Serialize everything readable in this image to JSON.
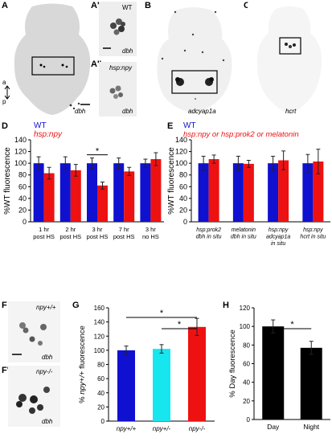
{
  "panels": {
    "A": {
      "letter": "A",
      "gene": "dbh",
      "axis_a": "a",
      "axis_p": "p"
    },
    "A1": {
      "letter": "A'",
      "label": "WT",
      "gene": "dbh"
    },
    "A2": {
      "letter": "A''",
      "label": "hsp:npy",
      "gene": "dbh"
    },
    "B": {
      "letter": "B",
      "gene": "adcyap1a"
    },
    "C": {
      "letter": "C",
      "gene": "hcrt"
    },
    "F": {
      "letter": "F",
      "label": "npy+/+",
      "gene": "dbh"
    },
    "F1": {
      "letter": "F'",
      "label": "npy-/-",
      "gene": "dbh"
    }
  },
  "colors": {
    "wt": "#1010d0",
    "transgenic": "#ee1111",
    "het": "#18e6ee",
    "black": "#000000"
  },
  "chart_data": [
    {
      "panel": "D",
      "type": "bar",
      "legend": [
        "WT",
        "hsp:npy"
      ],
      "ylabel": "%WT fluorescence",
      "ylim": [
        0,
        140
      ],
      "yticks": [
        0,
        20,
        40,
        60,
        80,
        100,
        120,
        140
      ],
      "categories": [
        "1 hr post HS",
        "2 hr post HS",
        "3 hr post HS",
        "7 hr post HS",
        "3 hr no HS"
      ],
      "category_lines": [
        [
          "1 hr",
          "post HS"
        ],
        [
          "2 hr",
          "post HS"
        ],
        [
          "3 hr",
          "post HS"
        ],
        [
          "7 hr",
          "post HS"
        ],
        [
          "3 hr",
          "no HS"
        ]
      ],
      "series": [
        {
          "name": "WT",
          "values": [
            100,
            100,
            100,
            100,
            100
          ],
          "errors": [
            11,
            11,
            9,
            9,
            7
          ]
        },
        {
          "name": "hsp:npy",
          "values": [
            83,
            88,
            62,
            86,
            107
          ],
          "errors": [
            10,
            10,
            6,
            7,
            11
          ]
        }
      ],
      "annotations": [
        {
          "text": "*",
          "category": 2
        }
      ]
    },
    {
      "panel": "E",
      "type": "bar",
      "legend": [
        "WT",
        "hsp:npy or hsp:prok2 or melatonin"
      ],
      "ylabel": "%WT fluorescence",
      "ylim": [
        0,
        140
      ],
      "yticks": [
        0,
        20,
        40,
        60,
        80,
        100,
        120,
        140
      ],
      "categories": [
        "hsp:prok2 dbh in situ",
        "melatonin dbh in situ",
        "hsp:npy adcyap1a in situ",
        "hsp:npy hcrt in situ"
      ],
      "category_lines": [
        [
          "hsp:prok2",
          "dbh in situ"
        ],
        [
          "melatonin",
          "dbh in situ"
        ],
        [
          "hsp:npy",
          "adcyap1a",
          "in situ"
        ],
        [
          "hsp:npy",
          "hcrt in situ"
        ]
      ],
      "series": [
        {
          "name": "WT",
          "values": [
            100,
            100,
            100,
            100
          ],
          "errors": [
            12,
            12,
            12,
            15
          ]
        },
        {
          "name": "hsp:npy or hsp:prok2 or melatonin",
          "values": [
            107,
            99,
            105,
            103
          ],
          "errors": [
            7,
            6,
            16,
            21
          ]
        }
      ]
    },
    {
      "panel": "G",
      "type": "bar",
      "ylabel": "% npy+/+ fluorescence",
      "ylim": [
        0,
        160
      ],
      "yticks": [
        0,
        20,
        40,
        60,
        80,
        100,
        120,
        140,
        160
      ],
      "categories": [
        "npy+/+",
        "npy+/-",
        "npy-/-"
      ],
      "series": [
        {
          "values": [
            100,
            102,
            133
          ],
          "errors": [
            6,
            6,
            12
          ]
        }
      ],
      "annotations": [
        {
          "text": "*",
          "from": 0,
          "to": 2
        },
        {
          "text": "*",
          "from": 1,
          "to": 2
        }
      ]
    },
    {
      "panel": "H",
      "type": "bar",
      "ylabel": "% Day fluorescence",
      "ylim": [
        0,
        120
      ],
      "yticks": [
        0,
        20,
        40,
        60,
        80,
        100,
        120
      ],
      "categories": [
        "Day",
        "Night"
      ],
      "series": [
        {
          "values": [
            100,
            77
          ],
          "errors": [
            7,
            7
          ]
        }
      ],
      "annotations": [
        {
          "text": "*",
          "from": 0,
          "to": 1
        }
      ]
    }
  ]
}
